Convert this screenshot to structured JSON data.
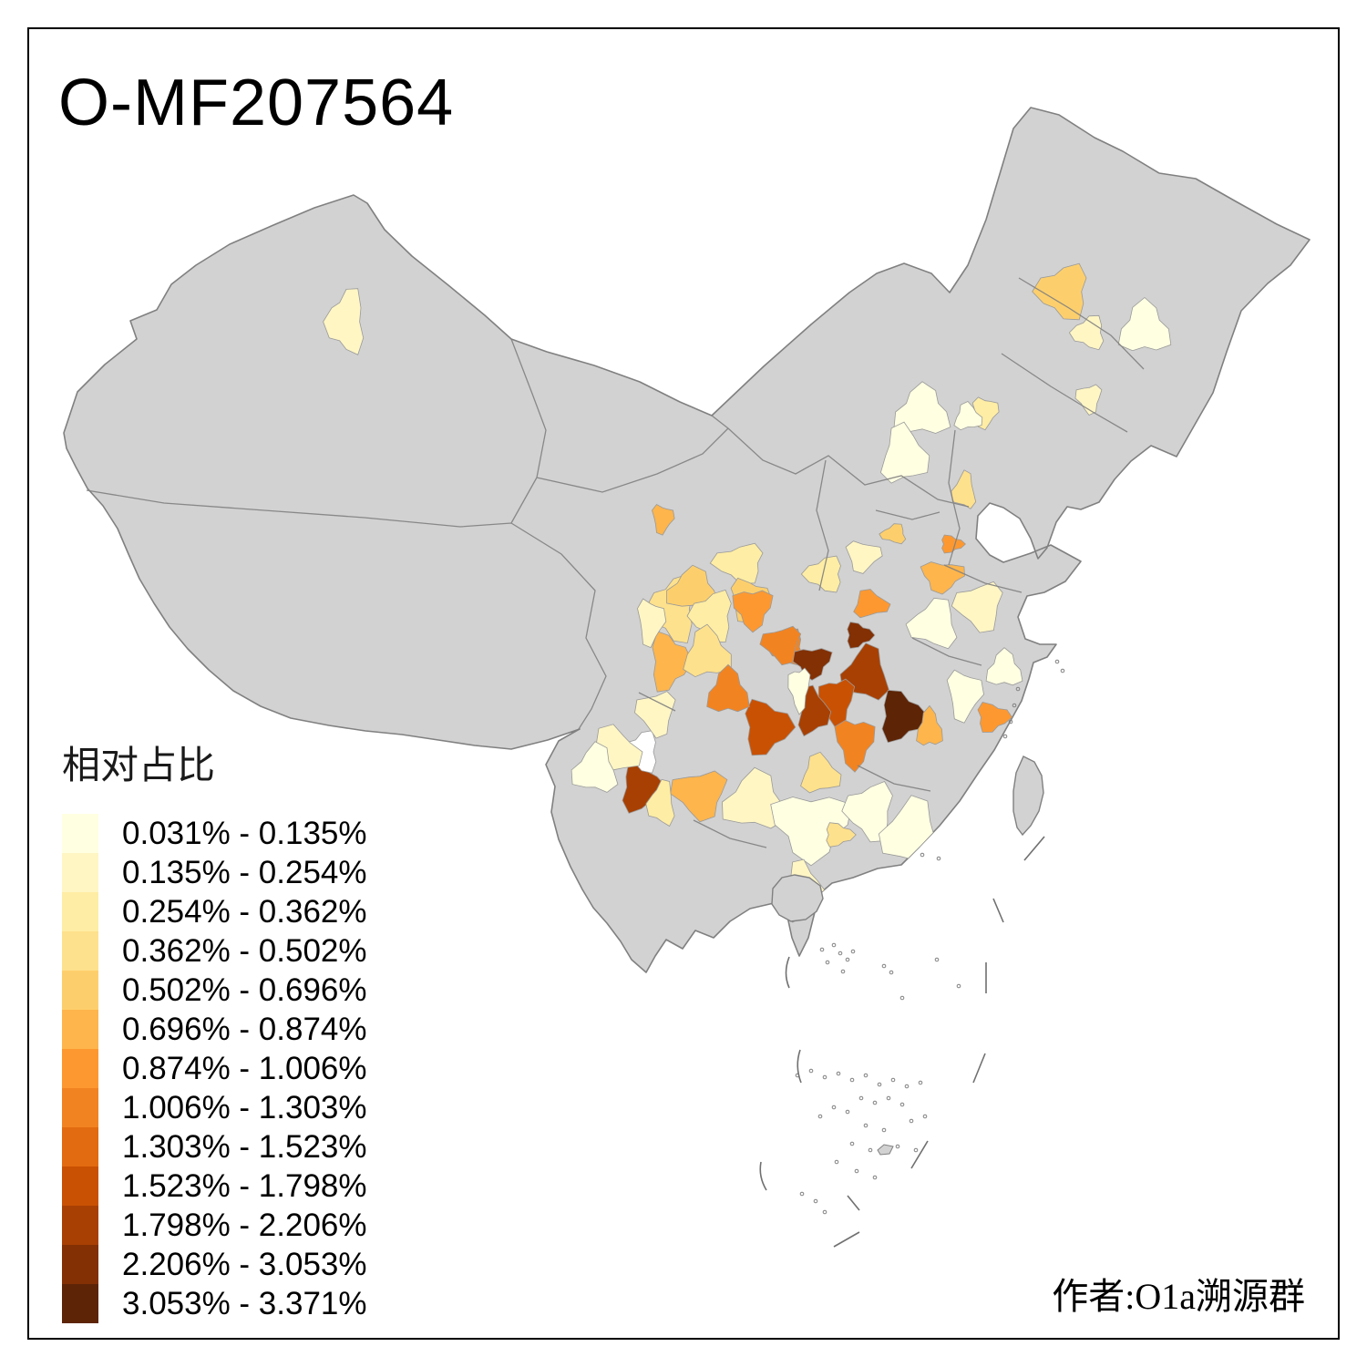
{
  "title": "O-MF207564",
  "attribution": "作者:O1a溯源群",
  "legend": {
    "title": "相对占比",
    "classes": [
      {
        "label": "0.031% - 0.135%",
        "color": "#FFFFE2"
      },
      {
        "label": "0.135% - 0.254%",
        "color": "#FFF6C4"
      },
      {
        "label": "0.254% - 0.362%",
        "color": "#FEEDA4"
      },
      {
        "label": "0.362% - 0.502%",
        "color": "#FEE18C"
      },
      {
        "label": "0.502% - 0.696%",
        "color": "#FDCF6C"
      },
      {
        "label": "0.696% - 0.874%",
        "color": "#FDB54C"
      },
      {
        "label": "0.874% - 1.006%",
        "color": "#FD9830"
      },
      {
        "label": "1.006% - 1.303%",
        "color": "#F28321"
      },
      {
        "label": "1.303% - 1.523%",
        "color": "#E26A10"
      },
      {
        "label": "1.523% - 1.798%",
        "color": "#C95103"
      },
      {
        "label": "1.798% - 2.206%",
        "color": "#A84003"
      },
      {
        "label": "2.206% - 3.053%",
        "color": "#823004"
      },
      {
        "label": "3.053% - 3.371%",
        "color": "#5D2406"
      }
    ]
  },
  "map": {
    "land_fill": "#D2D2D2",
    "boundary_color": "#808080",
    "no_data_region_fill": "#FFFFFF",
    "sea_fill": "#FFFFFF",
    "frame_color": "#000000"
  }
}
